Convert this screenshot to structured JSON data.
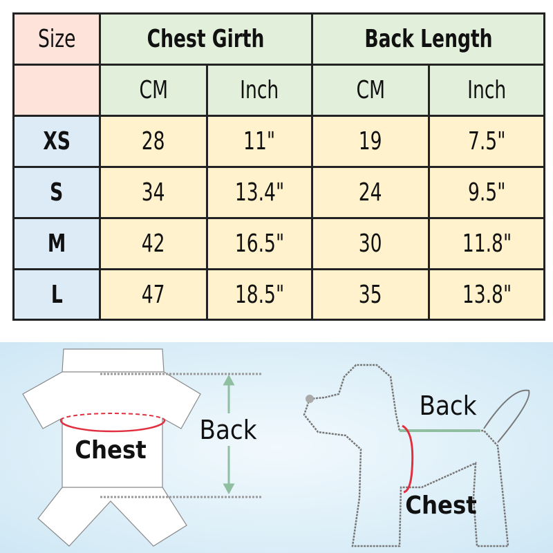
{
  "table": {
    "size_header": "Size",
    "group_headers": [
      "Chest Girth",
      "Back Length"
    ],
    "unit_headers": [
      "CM",
      "Inch",
      "CM",
      "Inch"
    ],
    "rows": [
      {
        "size": "XS",
        "values": [
          "28",
          "11\"",
          "19",
          "7.5\""
        ]
      },
      {
        "size": "S",
        "values": [
          "34",
          "13.4\"",
          "24",
          "9.5\""
        ]
      },
      {
        "size": "M",
        "values": [
          "42",
          "16.5\"",
          "30",
          "11.8\""
        ]
      },
      {
        "size": "L",
        "values": [
          "47",
          "18.5\"",
          "35",
          "13.8\""
        ]
      }
    ]
  },
  "diagram": {
    "garment_chest_label": "Chest",
    "garment_back_label": "Back",
    "dog_back_label": "Back",
    "dog_chest_label": "Chest"
  },
  "colors": {
    "size_bg": "#fde3da",
    "header_bg": "#e2efda",
    "size_col_bg": "#ddebf7",
    "cell_bg": "#fff2cc",
    "chest_line": "#e03040",
    "back_line": "#8fbfa0"
  }
}
